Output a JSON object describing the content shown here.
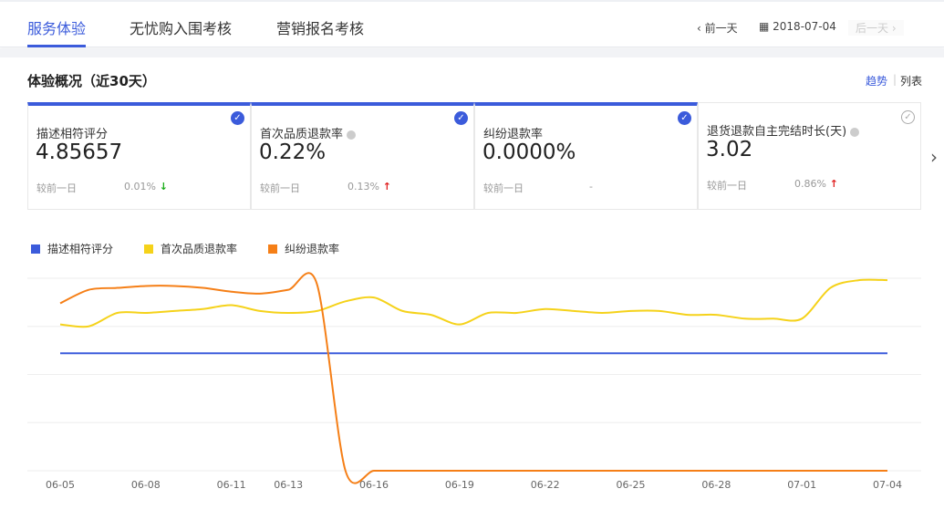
{
  "tabs": [
    {
      "label": "服务体验",
      "active": true
    },
    {
      "label": "无忧购入围考核"
    },
    {
      "label": "营销报名考核"
    }
  ],
  "datenav": {
    "prev": "前一天",
    "date": "2018-07-04",
    "next": "后一天"
  },
  "section": {
    "title": "体验概况（近30天）",
    "view_trend": "趋势",
    "view_list": "列表"
  },
  "cards": [
    {
      "label": "描述相符评分",
      "value": "4.85657",
      "compare": "较前一日",
      "change": "0.01%",
      "dir": "down",
      "checked": true,
      "info": false
    },
    {
      "label": "首次品质退款率",
      "value": "0.22%",
      "compare": "较前一日",
      "change": "0.13%",
      "dir": "up",
      "checked": true,
      "info": true
    },
    {
      "label": "纠纷退款率",
      "value": "0.0000%",
      "compare": "较前一日",
      "change": "-",
      "dir": "none",
      "checked": true,
      "info": false
    },
    {
      "label": "退货退款自主完结时长(天)",
      "value": "3.02",
      "compare": "较前一日",
      "change": "0.86%",
      "dir": "up",
      "checked": false,
      "info": true
    }
  ],
  "colors": {
    "accent": "#3b5bdb",
    "up": "#e02020",
    "down": "#1aad19"
  },
  "chart_data": {
    "type": "line",
    "note_units": "relative (no y-axis labels shown)",
    "ylim": [
      0,
      100
    ],
    "grid": true,
    "legend": "top-left",
    "x": [
      "06-05",
      "06-06",
      "06-07",
      "06-08",
      "06-09",
      "06-10",
      "06-11",
      "06-12",
      "06-13",
      "06-14",
      "06-15",
      "06-16",
      "06-17",
      "06-18",
      "06-19",
      "06-20",
      "06-21",
      "06-22",
      "06-23",
      "06-24",
      "06-25",
      "06-26",
      "06-27",
      "06-28",
      "06-29",
      "06-30",
      "07-01",
      "07-02",
      "07-03",
      "07-04"
    ],
    "xticks": [
      "06-05",
      "06-08",
      "06-11",
      "06-13",
      "06-16",
      "06-19",
      "06-22",
      "06-25",
      "06-28",
      "07-01",
      "07-04"
    ],
    "series": [
      {
        "name": "描述相符评分",
        "color": "#3b5bdb",
        "values": [
          61,
          61,
          61,
          61,
          61,
          61,
          61,
          61,
          61,
          61,
          61,
          61,
          61,
          61,
          61,
          61,
          61,
          61,
          61,
          61,
          61,
          61,
          61,
          61,
          61,
          61,
          61,
          61,
          61,
          61
        ]
      },
      {
        "name": "首次品质退款率",
        "color": "#f5d21a",
        "values": [
          76,
          75,
          82,
          82,
          83,
          84,
          86,
          83,
          82,
          83,
          88,
          90,
          83,
          81,
          76,
          82,
          82,
          84,
          83,
          82,
          83,
          83,
          81,
          81,
          79,
          79,
          79,
          95,
          99,
          99
        ]
      },
      {
        "name": "纠纷退款率",
        "color": "#f57f17",
        "values": [
          87,
          94,
          95,
          96,
          96,
          95,
          93,
          92,
          94,
          97,
          0,
          0,
          0,
          0,
          0,
          0,
          0,
          0,
          0,
          0,
          0,
          0,
          0,
          0,
          0,
          0,
          0,
          0,
          0,
          0
        ]
      }
    ]
  }
}
